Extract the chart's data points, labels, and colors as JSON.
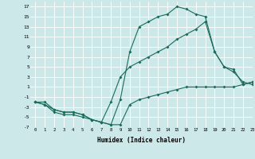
{
  "title": "",
  "xlabel": "Humidex (Indice chaleur)",
  "bg_color": "#cce8e8",
  "grid_color": "#ffffff",
  "line_color": "#1a6b5a",
  "xlim": [
    -0.5,
    23
  ],
  "ylim": [
    -7,
    18
  ],
  "xticks": [
    0,
    1,
    2,
    3,
    4,
    5,
    6,
    7,
    8,
    9,
    10,
    11,
    12,
    13,
    14,
    15,
    16,
    17,
    18,
    19,
    20,
    21,
    22,
    23
  ],
  "yticks": [
    -7,
    -5,
    -3,
    -1,
    1,
    3,
    5,
    7,
    9,
    11,
    13,
    15,
    17
  ],
  "line1_x": [
    0,
    1,
    2,
    3,
    4,
    5,
    6,
    7,
    8,
    9,
    10,
    11,
    12,
    13,
    14,
    15,
    16,
    17,
    18,
    19,
    20,
    21,
    22,
    23
  ],
  "line1_y": [
    -2,
    -2.5,
    -3.5,
    -4,
    -4,
    -4.5,
    -5.5,
    -6,
    -6.5,
    -1.5,
    8,
    13,
    14,
    15,
    15.5,
    17,
    16.5,
    15.5,
    15,
    8,
    5,
    4.5,
    1.5,
    2
  ],
  "line2_x": [
    0,
    1,
    2,
    3,
    4,
    5,
    6,
    7,
    8,
    9,
    10,
    11,
    12,
    13,
    14,
    15,
    16,
    17,
    18,
    19,
    20,
    21,
    22,
    23
  ],
  "line2_y": [
    -2,
    -2.5,
    -4,
    -4.5,
    -4.5,
    -5,
    -5.5,
    -6,
    -6.5,
    -6.5,
    -2.5,
    -1.5,
    -1,
    -0.5,
    0,
    0.5,
    1,
    1,
    1,
    1,
    1,
    1,
    1.5,
    2
  ],
  "line3_x": [
    0,
    1,
    2,
    3,
    4,
    5,
    6,
    7,
    8,
    9,
    10,
    11,
    12,
    13,
    14,
    15,
    16,
    17,
    18,
    19,
    20,
    21,
    22,
    23
  ],
  "line3_y": [
    -2,
    -2,
    -3.5,
    -4,
    -4,
    -4.5,
    -5.5,
    -6,
    -2,
    3,
    5,
    6,
    7,
    8,
    9,
    10.5,
    11.5,
    12.5,
    14,
    8,
    5,
    4,
    2,
    1.5
  ]
}
